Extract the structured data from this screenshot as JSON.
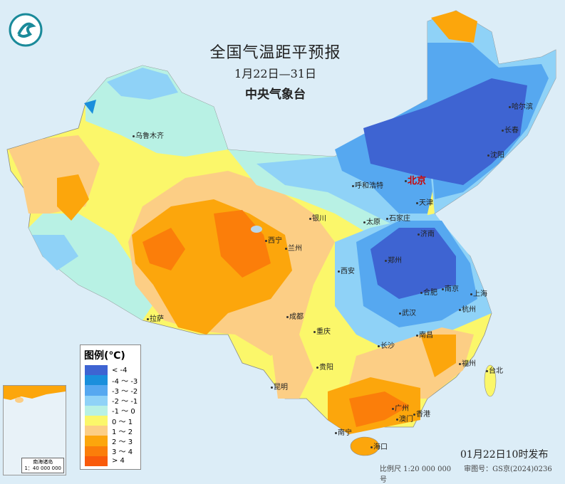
{
  "title": "全国气温距平预报",
  "period": "1月22日—31日",
  "publisher": "中央气象台",
  "legend": {
    "title": "图例(℃)",
    "items": [
      {
        "label": "< -4",
        "color": "#3e64d2"
      },
      {
        "label": "-4 ～ -3",
        "color": "#1a8fdc"
      },
      {
        "label": "-3 ～ -2",
        "color": "#56a8f0"
      },
      {
        "label": "-2 ～ -1",
        "color": "#8fd2f7"
      },
      {
        "label": "-1 ～ 0",
        "color": "#b8f1e4"
      },
      {
        "label": "0 ～ 1",
        "color": "#fbf76a"
      },
      {
        "label": "1 ～ 2",
        "color": "#fcce85"
      },
      {
        "label": "2 ～ 3",
        "color": "#fca60c"
      },
      {
        "label": "3 ～ 4",
        "color": "#fb7e0a"
      },
      {
        "label": "> 4",
        "color": "#f95a0a"
      }
    ]
  },
  "cities": {
    "urumqi": "乌鲁木齐",
    "lhasa": "拉萨",
    "xining": "西宁",
    "lanzhou": "兰州",
    "yinchuan": "银川",
    "hohhot": "呼和浩特",
    "beijing": "北京",
    "tianjin": "天津",
    "shijiazhuang": "石家庄",
    "taiyuan": "太原",
    "jinan": "济南",
    "zhengzhou": "郑州",
    "xian": "西安",
    "chengdu": "成都",
    "chongqing": "重庆",
    "guiyang": "贵阳",
    "kunming": "昆明",
    "nanning": "南宁",
    "guangzhou": "广州",
    "hongkong": "香港",
    "macau": "澳门",
    "haikou": "海口",
    "changsha": "长沙",
    "wuhan": "武汉",
    "hefei": "合肥",
    "nanjing": "南京",
    "shanghai": "上海",
    "hangzhou": "杭州",
    "nanchang": "南昌",
    "fuzhou": "福州",
    "taipei": "台北",
    "shenyang": "沈阳",
    "changchun": "长春",
    "harbin": "哈尔滨"
  },
  "inset": {
    "title": "南海诸岛",
    "scale": "1：40 000 000"
  },
  "issued": "01月22日10时发布",
  "scale": "比例尺 1:20 000 000",
  "approval": "审图号：GS京(2024)0236号",
  "logo_icon": "cma-logo-icon"
}
